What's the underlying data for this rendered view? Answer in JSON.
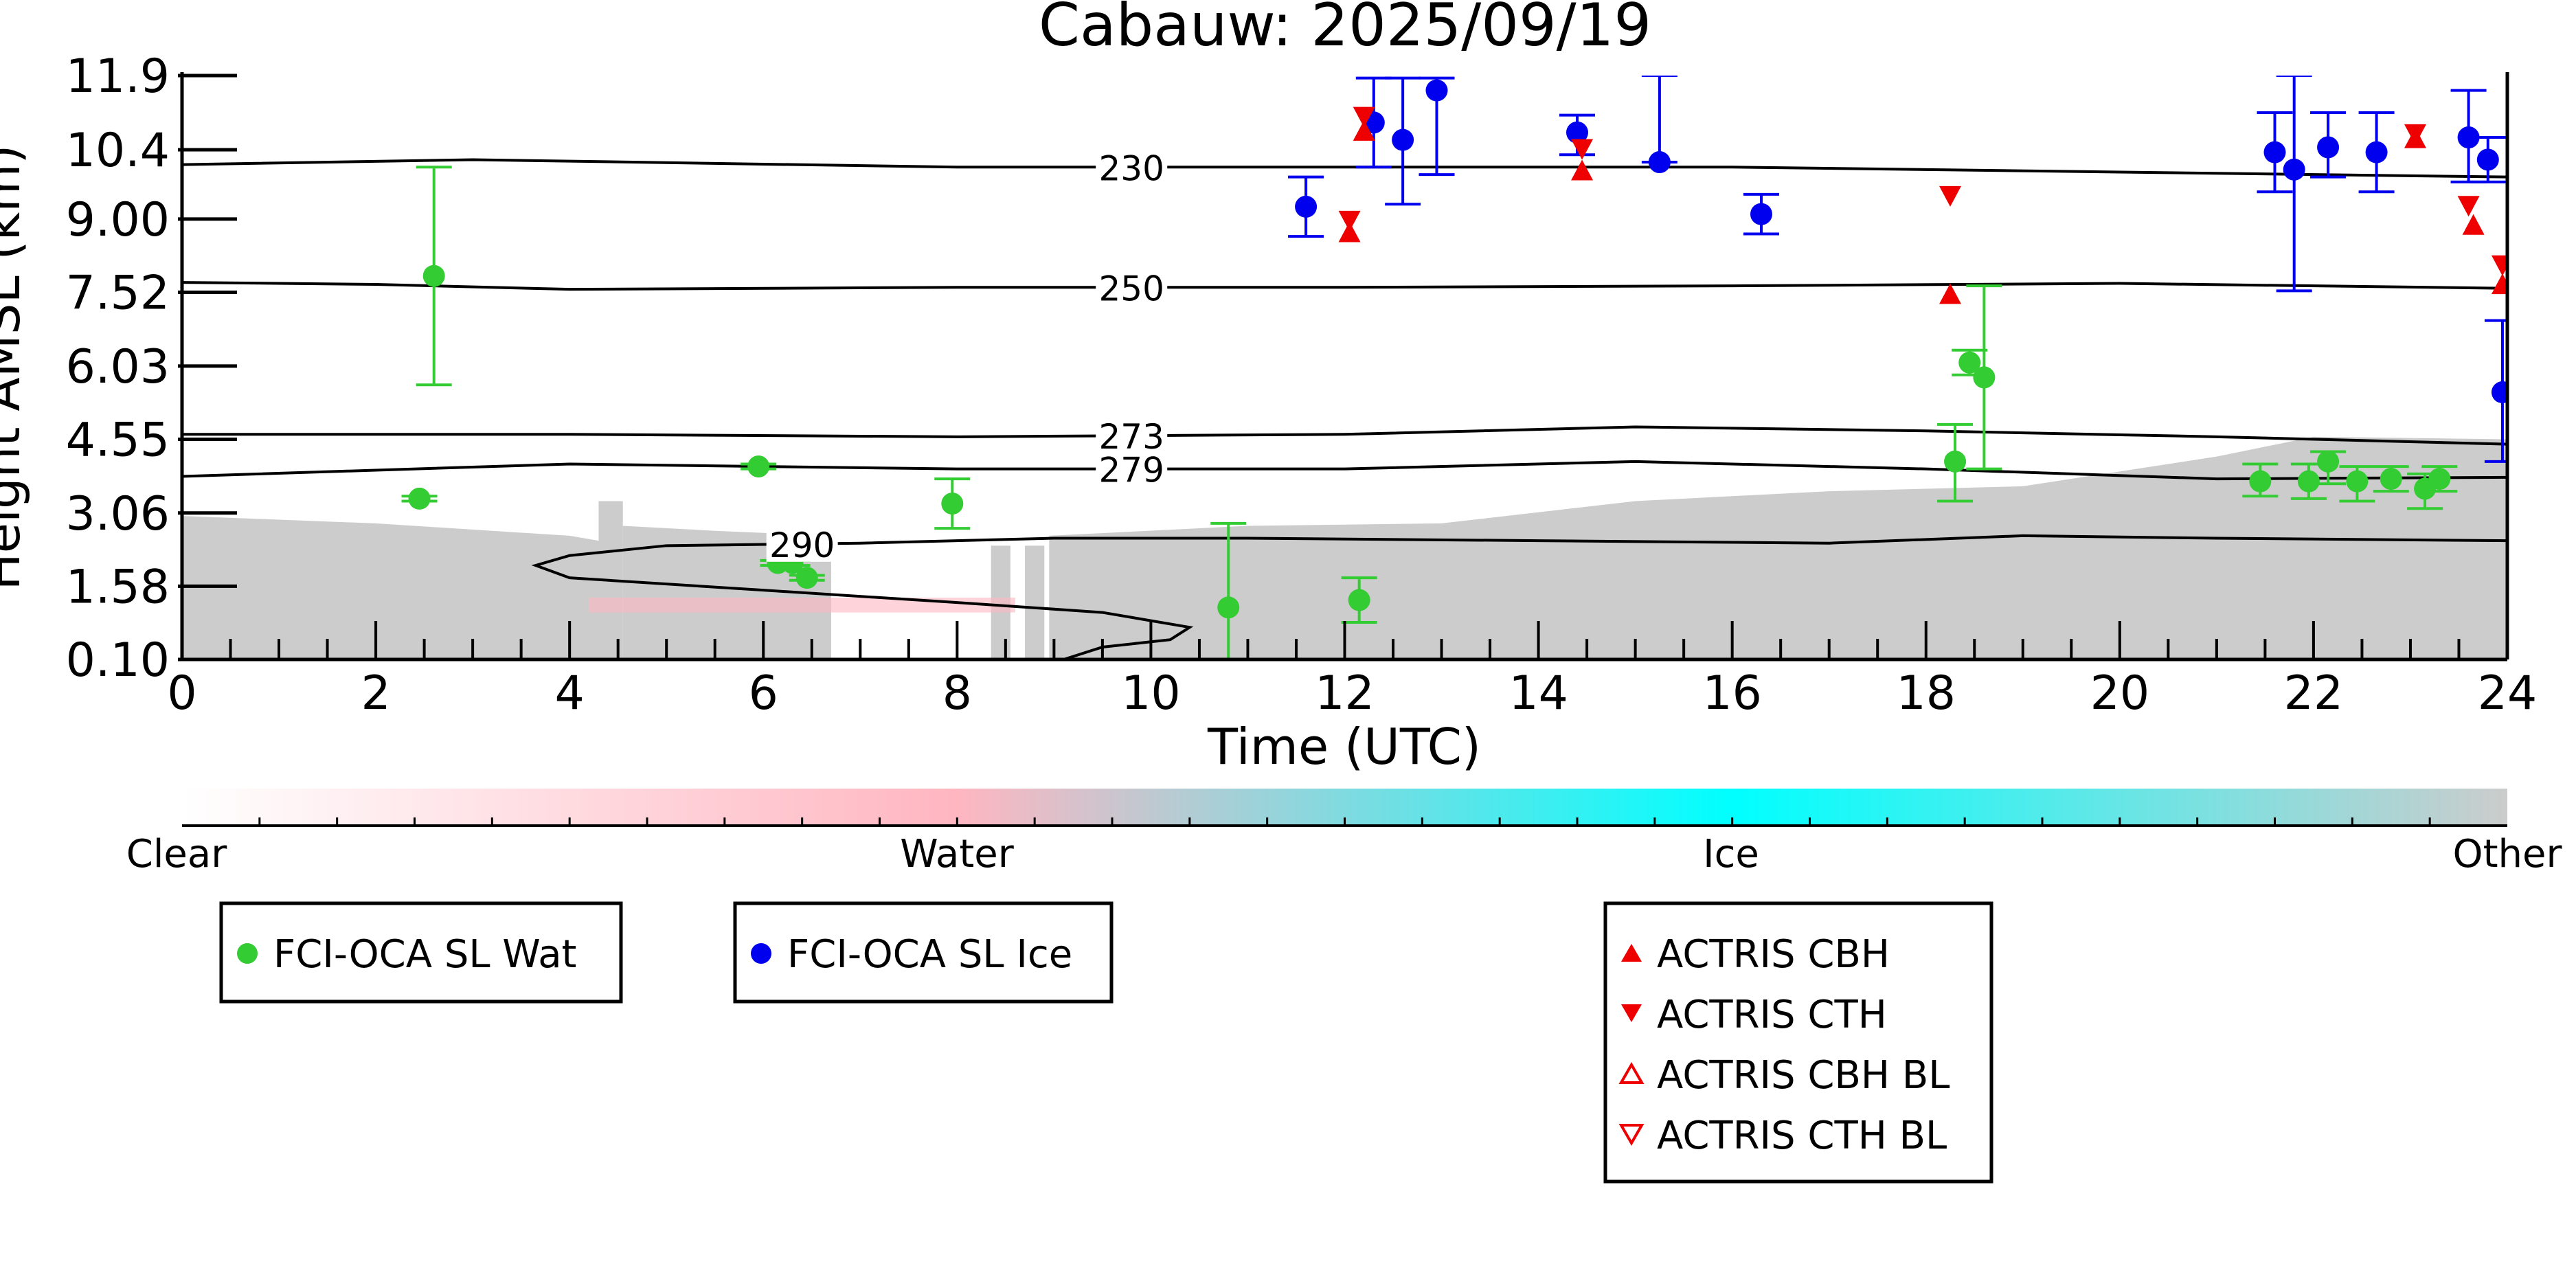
{
  "chart_data": {
    "type": "scatter",
    "title": "Cabauw: 2025/09/19",
    "xlabel": "Time (UTC)",
    "ylabel": "Height AMSL (km)",
    "xlim": [
      0,
      24
    ],
    "ylim": [
      0.1,
      11.9
    ],
    "x_ticks": [
      "0",
      "2",
      "4",
      "6",
      "8",
      "10",
      "12",
      "14",
      "16",
      "18",
      "20",
      "22",
      "24"
    ],
    "y_ticks": [
      {
        "value": 0.1,
        "label": "0.10"
      },
      {
        "value": 1.58,
        "label": "1.58"
      },
      {
        "value": 3.06,
        "label": "3.06"
      },
      {
        "value": 4.55,
        "label": "4.55"
      },
      {
        "value": 6.03,
        "label": "6.03"
      },
      {
        "value": 7.52,
        "label": "7.52"
      },
      {
        "value": 9.0,
        "label": "9.00"
      },
      {
        "value": 10.4,
        "label": "10.4"
      },
      {
        "value": 11.9,
        "label": "11.9"
      }
    ],
    "grid": false,
    "contours": [
      {
        "label": "230",
        "label_x": 9.8,
        "points": [
          [
            0,
            10.1
          ],
          [
            3,
            10.2
          ],
          [
            8,
            10.05
          ],
          [
            12,
            10.05
          ],
          [
            16,
            10.05
          ],
          [
            20,
            9.95
          ],
          [
            24,
            9.85
          ]
        ]
      },
      {
        "label": "250",
        "label_x": 9.8,
        "points": [
          [
            0,
            7.72
          ],
          [
            2,
            7.68
          ],
          [
            4,
            7.58
          ],
          [
            8,
            7.62
          ],
          [
            12,
            7.62
          ],
          [
            16,
            7.65
          ],
          [
            20,
            7.7
          ],
          [
            24,
            7.6
          ]
        ]
      },
      {
        "label": "273",
        "label_x": 9.8,
        "points": [
          [
            0,
            4.65
          ],
          [
            4,
            4.65
          ],
          [
            8,
            4.6
          ],
          [
            12,
            4.65
          ],
          [
            15,
            4.8
          ],
          [
            18,
            4.72
          ],
          [
            21,
            4.6
          ],
          [
            24,
            4.45
          ]
        ]
      },
      {
        "label": "279",
        "label_x": 9.8,
        "points": [
          [
            0,
            3.8
          ],
          [
            4,
            4.05
          ],
          [
            8,
            3.95
          ],
          [
            12,
            3.95
          ],
          [
            15,
            4.1
          ],
          [
            18,
            3.95
          ],
          [
            21,
            3.75
          ],
          [
            24,
            3.78
          ]
        ]
      },
      {
        "label": "290",
        "label_x": 6.4,
        "points": [
          [
            24,
            2.5
          ],
          [
            21,
            2.55
          ],
          [
            19,
            2.6
          ],
          [
            17,
            2.45
          ],
          [
            14,
            2.5
          ],
          [
            11,
            2.55
          ],
          [
            9,
            2.55
          ],
          [
            7,
            2.45
          ],
          [
            5,
            2.4
          ],
          [
            4,
            2.2
          ],
          [
            3.65,
            2.0
          ],
          [
            4,
            1.75
          ],
          [
            6,
            1.5
          ],
          [
            8,
            1.25
          ],
          [
            9.5,
            1.05
          ],
          [
            10.4,
            0.75
          ],
          [
            10.2,
            0.5
          ],
          [
            9.5,
            0.35
          ],
          [
            9.1,
            0.1
          ]
        ]
      }
    ],
    "series": [
      {
        "name": "FCI-OCA SL Wat",
        "color": "#33cc33",
        "marker": "circle",
        "points": [
          {
            "x": 2.45,
            "y": 3.35,
            "lo": 3.3,
            "hi": 3.4
          },
          {
            "x": 2.6,
            "y": 7.85,
            "lo": 5.65,
            "hi": 10.05
          },
          {
            "x": 5.95,
            "y": 4.0,
            "lo": 3.95,
            "hi": 4.05
          },
          {
            "x": 6.15,
            "y": 2.05,
            "lo": 2.0,
            "hi": 2.1
          },
          {
            "x": 6.3,
            "y": 2.05,
            "lo": 2.0,
            "hi": 2.1
          },
          {
            "x": 6.45,
            "y": 1.75,
            "lo": 1.7,
            "hi": 1.8
          },
          {
            "x": 7.95,
            "y": 3.25,
            "lo": 2.75,
            "hi": 3.75
          },
          {
            "x": 10.8,
            "y": 1.15,
            "lo": -0.3,
            "hi": 2.85
          },
          {
            "x": 12.15,
            "y": 1.3,
            "lo": 0.85,
            "hi": 1.75
          },
          {
            "x": 18.3,
            "y": 4.1,
            "lo": 3.3,
            "hi": 4.85
          },
          {
            "x": 18.45,
            "y": 6.1,
            "lo": 5.85,
            "hi": 6.35
          },
          {
            "x": 18.6,
            "y": 5.8,
            "lo": 3.95,
            "hi": 7.65
          },
          {
            "x": 21.45,
            "y": 3.7,
            "lo": 3.4,
            "hi": 4.05
          },
          {
            "x": 21.95,
            "y": 3.7,
            "lo": 3.35,
            "hi": 4.05
          },
          {
            "x": 22.15,
            "y": 4.1,
            "lo": 3.65,
            "hi": 4.3
          },
          {
            "x": 22.45,
            "y": 3.7,
            "lo": 3.3,
            "hi": 4.0
          },
          {
            "x": 22.8,
            "y": 3.75,
            "lo": 3.5,
            "hi": 4.0
          },
          {
            "x": 23.15,
            "y": 3.55,
            "lo": 3.15,
            "hi": 3.85
          },
          {
            "x": 23.3,
            "y": 3.75,
            "lo": 3.5,
            "hi": 4.0
          }
        ]
      },
      {
        "name": "FCI-OCA SL Ice",
        "color": "#0000ee",
        "marker": "circle",
        "points": [
          {
            "x": 11.6,
            "y": 9.25,
            "lo": 8.65,
            "hi": 9.85
          },
          {
            "x": 12.3,
            "y": 10.95,
            "lo": 10.05,
            "hi": 11.85
          },
          {
            "x": 12.6,
            "y": 10.6,
            "lo": 9.3,
            "hi": 11.85
          },
          {
            "x": 12.95,
            "y": 11.6,
            "lo": 9.9,
            "hi": 11.85
          },
          {
            "x": 14.4,
            "y": 10.75,
            "lo": 10.3,
            "hi": 11.1
          },
          {
            "x": 15.25,
            "y": 10.15,
            "lo": 10.15,
            "hi": 11.9
          },
          {
            "x": 16.3,
            "y": 9.1,
            "lo": 8.7,
            "hi": 9.5
          },
          {
            "x": 21.6,
            "y": 10.35,
            "lo": 9.55,
            "hi": 11.15
          },
          {
            "x": 21.8,
            "y": 10.0,
            "lo": 7.55,
            "hi": 11.9
          },
          {
            "x": 22.15,
            "y": 10.45,
            "lo": 9.85,
            "hi": 11.15
          },
          {
            "x": 22.65,
            "y": 10.35,
            "lo": 9.55,
            "hi": 11.15
          },
          {
            "x": 23.6,
            "y": 10.65,
            "lo": 9.75,
            "hi": 11.6
          },
          {
            "x": 23.8,
            "y": 10.2,
            "lo": 9.75,
            "hi": 10.65
          },
          {
            "x": 23.95,
            "y": 5.5,
            "lo": 4.1,
            "hi": 6.95
          }
        ]
      },
      {
        "name": "ACTRIS CBH",
        "color": "#ee0000",
        "marker": "triangle-up",
        "points": [
          {
            "x": 12.2,
            "y": 10.75
          },
          {
            "x": 12.05,
            "y": 8.7
          },
          {
            "x": 14.45,
            "y": 9.95
          },
          {
            "x": 18.25,
            "y": 7.45
          },
          {
            "x": 23.05,
            "y": 10.6
          },
          {
            "x": 23.65,
            "y": 8.85
          },
          {
            "x": 23.95,
            "y": 7.65
          }
        ]
      },
      {
        "name": "ACTRIS CTH",
        "color": "#ee0000",
        "marker": "triangle-down",
        "points": [
          {
            "x": 12.2,
            "y": 11.1
          },
          {
            "x": 12.05,
            "y": 9.0
          },
          {
            "x": 14.45,
            "y": 10.45
          },
          {
            "x": 18.25,
            "y": 9.5
          },
          {
            "x": 23.05,
            "y": 10.75
          },
          {
            "x": 23.6,
            "y": 9.3
          },
          {
            "x": 23.95,
            "y": 8.1
          }
        ]
      },
      {
        "name": "ACTRIS CBH BL",
        "color": "#ee0000",
        "marker": "triangle-up-open",
        "points": []
      },
      {
        "name": "ACTRIS CTH BL",
        "color": "#ee0000",
        "marker": "triangle-down-open",
        "points": []
      }
    ],
    "background": {
      "other_regions": [
        {
          "from": 0.0,
          "to": 4.3,
          "top": [
            [
              0,
              3.0
            ],
            [
              2,
              2.85
            ],
            [
              4,
              2.6
            ],
            [
              4.3,
              2.5
            ]
          ]
        },
        {
          "from": 4.3,
          "to": 4.55,
          "top": [
            [
              4.3,
              3.3
            ],
            [
              4.55,
              3.3
            ]
          ]
        },
        {
          "from": 4.55,
          "to": 6.7,
          "top": [
            [
              4.55,
              2.8
            ],
            [
              5.5,
              2.7
            ],
            [
              6.7,
              2.6
            ]
          ]
        },
        {
          "from": 8.35,
          "to": 8.55,
          "top": [
            [
              8.35,
              2.4
            ],
            [
              8.55,
              2.4
            ]
          ]
        },
        {
          "from": 8.7,
          "to": 8.9,
          "top": [
            [
              8.7,
              2.4
            ],
            [
              8.9,
              2.4
            ]
          ]
        },
        {
          "from": 8.95,
          "to": 24.0,
          "top": [
            [
              8.95,
              2.6
            ],
            [
              11,
              2.8
            ],
            [
              13,
              2.85
            ],
            [
              15,
              3.3
            ],
            [
              17,
              3.5
            ],
            [
              19,
              3.6
            ],
            [
              21,
              4.2
            ],
            [
              22,
              4.6
            ],
            [
              24,
              4.55
            ]
          ]
        }
      ],
      "water_regions": [
        {
          "from": 4.2,
          "to": 8.6,
          "bottom": 1.05,
          "top": 1.35
        }
      ]
    },
    "colorbar": {
      "labels": [
        "Clear",
        "Water",
        "Ice",
        "Other"
      ],
      "colors": [
        "#ffffff",
        "#ffb6c1",
        "#00ffff",
        "#cccccc"
      ]
    },
    "legend_boxes": [
      {
        "placement": "bottom-left",
        "entries": [
          "FCI-OCA SL Wat"
        ]
      },
      {
        "placement": "bottom-center-left",
        "entries": [
          "FCI-OCA SL Ice"
        ]
      },
      {
        "placement": "bottom-center-right",
        "entries": [
          "ACTRIS CBH",
          "ACTRIS CTH",
          "ACTRIS CBH BL",
          "ACTRIS CTH BL"
        ]
      }
    ]
  }
}
